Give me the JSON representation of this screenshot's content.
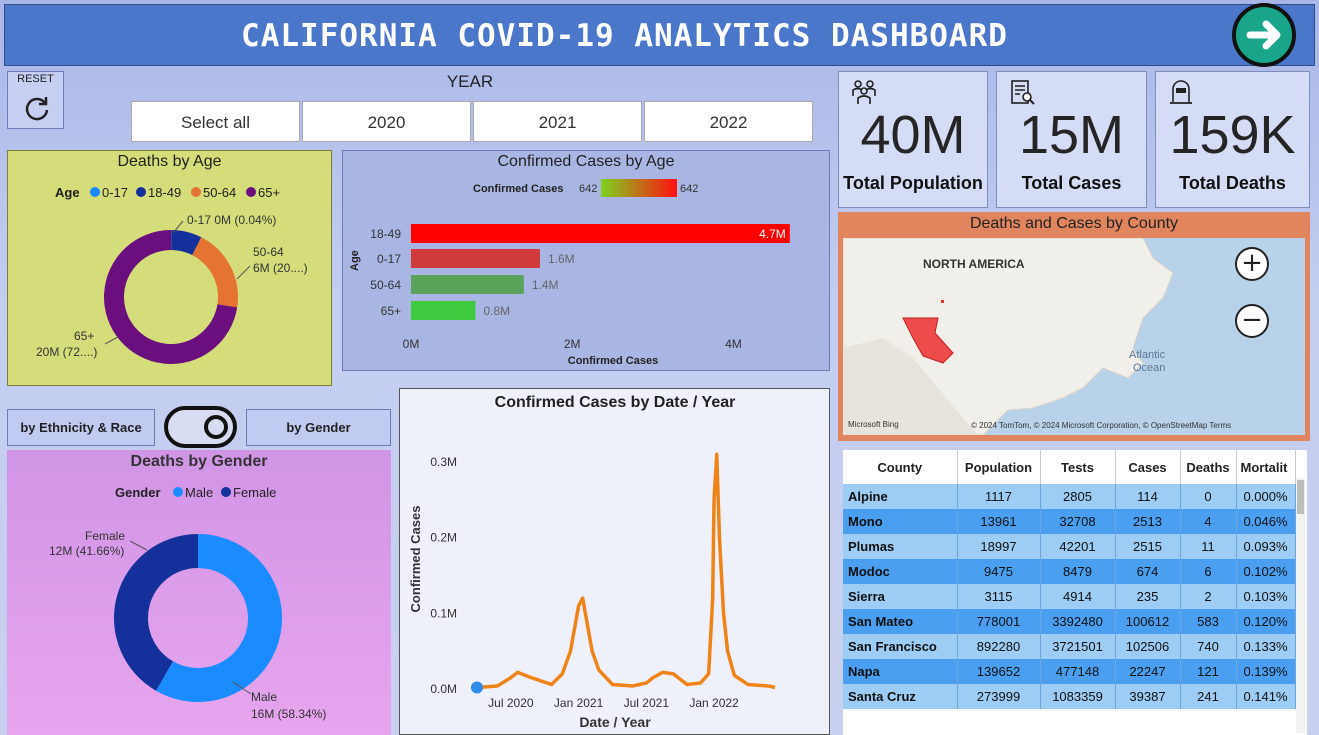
{
  "header": {
    "title": "CALIFORNIA COVID-19 ANALYTICS DASHBOARD"
  },
  "reset": {
    "label": "RESET"
  },
  "year_filter": {
    "title": "YEAR",
    "options": [
      "Select all",
      "2020",
      "2021",
      "2022"
    ]
  },
  "kpis": [
    {
      "value": "40M",
      "label": "Total Population"
    },
    {
      "value": "15M",
      "label": "Total Cases"
    },
    {
      "value": "159K",
      "label": "Total Deaths"
    }
  ],
  "deaths_by_age": {
    "title": "Deaths by Age",
    "legend_title": "Age",
    "legend": [
      {
        "label": "0-17",
        "color": "#1a8cff"
      },
      {
        "label": "18-49",
        "color": "#14309a"
      },
      {
        "label": "50-64",
        "color": "#e57432"
      },
      {
        "label": "65+",
        "color": "#6b0f7e"
      }
    ],
    "labels": {
      "a": "0-17 0M (0.04%)",
      "b1": "50-64",
      "b2": "6M (20....)",
      "c1": "65+",
      "c2": "20M (72....)"
    }
  },
  "confirmed_by_age": {
    "title": "Confirmed Cases by Age",
    "legend_title": "Confirmed Cases",
    "legend_min": "642",
    "legend_max": "642",
    "y_axis_label": "Age",
    "x_axis_label": "Confirmed Cases",
    "ticks": [
      "0M",
      "2M",
      "4M"
    ]
  },
  "switch": {
    "left": "by Ethnicity & Race",
    "right": "by Gender"
  },
  "deaths_by_gender": {
    "title": "Deaths by Gender",
    "legend_title": "Gender",
    "legend": [
      {
        "label": "Male",
        "color": "#1a8cff"
      },
      {
        "label": "Female",
        "color": "#14309a"
      }
    ],
    "labels": {
      "f1": "Female",
      "f2": "12M (41.66%)",
      "m1": "Male",
      "m2": "16M (58.34%)"
    }
  },
  "timeline": {
    "title": "Confirmed Cases by Date / Year",
    "x_label": "Date / Year",
    "y_label": "Confirmed Cases"
  },
  "map": {
    "title": "Deaths and Cases by County",
    "continent": "NORTH AMERICA",
    "ocean": "Atlantic\nOcean",
    "attribution": "© 2024 TomTom, © 2024 Microsoft Corporation, © OpenStreetMap  Terms",
    "brand": "Microsoft Bing"
  },
  "table": {
    "columns": [
      "County",
      "Population",
      "Tests",
      "Cases",
      "Deaths",
      "Mortalit"
    ],
    "rows": [
      [
        "Alpine",
        "1117",
        "2805",
        "114",
        "0",
        "0.000%"
      ],
      [
        "Mono",
        "13961",
        "32708",
        "2513",
        "4",
        "0.046%"
      ],
      [
        "Plumas",
        "18997",
        "42201",
        "2515",
        "11",
        "0.093%"
      ],
      [
        "Modoc",
        "9475",
        "8479",
        "674",
        "6",
        "0.102%"
      ],
      [
        "Sierra",
        "3115",
        "4914",
        "235",
        "2",
        "0.103%"
      ],
      [
        "San Mateo",
        "778001",
        "3392480",
        "100612",
        "583",
        "0.120%"
      ],
      [
        "San Francisco",
        "892280",
        "3721501",
        "102506",
        "740",
        "0.133%"
      ],
      [
        "Napa",
        "139652",
        "477148",
        "22247",
        "121",
        "0.139%"
      ],
      [
        "Santa Cruz",
        "273999",
        "1083359",
        "39387",
        "241",
        "0.141%"
      ]
    ]
  },
  "chart_data": [
    {
      "type": "pie",
      "title": "Deaths by Age",
      "categories": [
        "0-17",
        "18-49",
        "50-64",
        "65+"
      ],
      "values": [
        0.04,
        7.4,
        20,
        72.56
      ]
    },
    {
      "type": "bar",
      "title": "Confirmed Cases by Age",
      "categories": [
        "18-49",
        "0-17",
        "50-64",
        "65+"
      ],
      "values": [
        4.7,
        1.6,
        1.4,
        0.8
      ],
      "data_labels": [
        "4.7M",
        "1.6M",
        "1.4M",
        "0.8M"
      ],
      "colors": [
        "#ff0000",
        "#d13a3a",
        "#5aa35a",
        "#3fc93f"
      ],
      "xlim": [
        0,
        4.7
      ],
      "xticks": [
        0,
        2,
        4
      ]
    },
    {
      "type": "pie",
      "title": "Deaths by Gender",
      "categories": [
        "Male",
        "Female"
      ],
      "values": [
        58.34,
        41.66
      ]
    },
    {
      "type": "line",
      "title": "Confirmed Cases by Date / Year",
      "xlabel": "Date / Year",
      "ylabel": "Confirmed Cases",
      "x_ticks": [
        "Jul 2020",
        "Jan 2021",
        "Jul 2021",
        "Jan 2022"
      ],
      "y_ticks": [
        "0.0M",
        "0.1M",
        "0.2M",
        "0.3M"
      ],
      "ylim": [
        0,
        0.31
      ],
      "series": [
        {
          "color": "#ee8418",
          "x": [
            2020.25,
            2020.4,
            2020.5,
            2020.55,
            2020.65,
            2020.8,
            2020.88,
            2020.94,
            2020.98,
            2021.0,
            2021.03,
            2021.06,
            2021.1,
            2021.15,
            2021.25,
            2021.4,
            2021.5,
            2021.55,
            2021.62,
            2021.7,
            2021.8,
            2021.9,
            2021.96,
            2021.99,
            2022.0,
            2022.02,
            2022.04,
            2022.07,
            2022.1,
            2022.15,
            2022.25,
            2022.4,
            2022.45
          ],
          "y": [
            0.002,
            0.004,
            0.015,
            0.022,
            0.015,
            0.006,
            0.02,
            0.05,
            0.09,
            0.11,
            0.12,
            0.09,
            0.05,
            0.025,
            0.006,
            0.004,
            0.008,
            0.015,
            0.022,
            0.02,
            0.006,
            0.008,
            0.02,
            0.12,
            0.25,
            0.31,
            0.2,
            0.1,
            0.05,
            0.018,
            0.006,
            0.004,
            0.002
          ]
        }
      ]
    }
  ]
}
